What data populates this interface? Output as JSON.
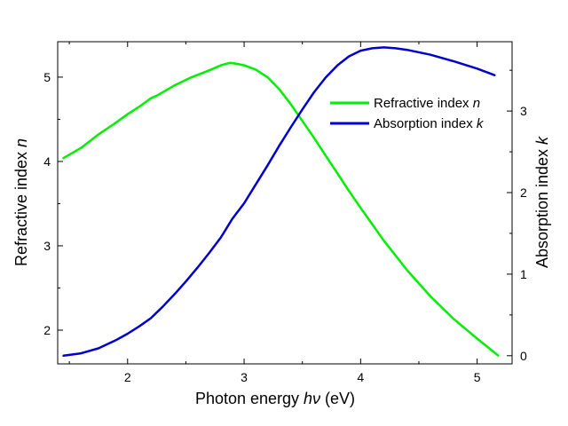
{
  "chart_data": {
    "type": "line",
    "xlabel": "Photon energy hν (eV)",
    "xlabel_parts": {
      "prefix": "Photon energy ",
      "symbol": "hν",
      "suffix": " (eV)"
    },
    "ylabel_left": "Refractive index n",
    "ylabel_left_parts": {
      "prefix": "Refractive index ",
      "symbol": "n"
    },
    "ylabel_right": "Absorption index k",
    "ylabel_right_parts": {
      "prefix": "Absorption index ",
      "symbol": "k"
    },
    "xlim": [
      1.4,
      5.3
    ],
    "ylim_left": [
      1.6,
      5.42
    ],
    "ylim_right": [
      -0.1,
      3.85
    ],
    "x_ticks": [
      "2",
      "3",
      "4",
      "5"
    ],
    "y_left_ticks": [
      "2",
      "3",
      "4",
      "5"
    ],
    "y_right_ticks": [
      "0",
      "1",
      "2",
      "3"
    ],
    "legend_placement": "upper-right",
    "grid": false,
    "series": [
      {
        "name": "Refractive index n",
        "legend_prefix": "Refractive index ",
        "legend_symbol": "n",
        "axis": "left",
        "color": "#00ee00",
        "x": [
          1.45,
          1.6,
          1.75,
          1.9,
          2.0,
          2.1,
          2.2,
          2.25,
          2.4,
          2.55,
          2.7,
          2.8,
          2.88,
          2.93,
          3.0,
          3.1,
          3.2,
          3.3,
          3.4,
          3.5,
          3.6,
          3.7,
          3.8,
          3.9,
          4.0,
          4.2,
          4.4,
          4.6,
          4.8,
          5.0,
          5.18
        ],
        "y": [
          4.04,
          4.16,
          4.32,
          4.46,
          4.56,
          4.65,
          4.75,
          4.78,
          4.9,
          5.0,
          5.08,
          5.14,
          5.17,
          5.16,
          5.14,
          5.09,
          5.0,
          4.86,
          4.68,
          4.48,
          4.28,
          4.07,
          3.86,
          3.65,
          3.45,
          3.06,
          2.71,
          2.4,
          2.13,
          1.9,
          1.7
        ]
      },
      {
        "name": "Absorption index k",
        "legend_prefix": "Absorption index ",
        "legend_symbol": "k",
        "axis": "right",
        "color": "#0000cc",
        "x": [
          1.45,
          1.6,
          1.75,
          1.9,
          2.0,
          2.1,
          2.2,
          2.3,
          2.4,
          2.5,
          2.6,
          2.7,
          2.8,
          2.9,
          3.0,
          3.1,
          3.2,
          3.3,
          3.4,
          3.5,
          3.6,
          3.7,
          3.8,
          3.9,
          4.0,
          4.1,
          4.2,
          4.3,
          4.4,
          4.6,
          4.8,
          5.0,
          5.15
        ],
        "y": [
          0.0,
          0.03,
          0.09,
          0.19,
          0.27,
          0.36,
          0.46,
          0.6,
          0.75,
          0.91,
          1.08,
          1.26,
          1.45,
          1.68,
          1.87,
          2.1,
          2.33,
          2.57,
          2.8,
          3.02,
          3.23,
          3.41,
          3.56,
          3.67,
          3.74,
          3.77,
          3.78,
          3.77,
          3.75,
          3.69,
          3.61,
          3.52,
          3.44
        ]
      }
    ]
  }
}
